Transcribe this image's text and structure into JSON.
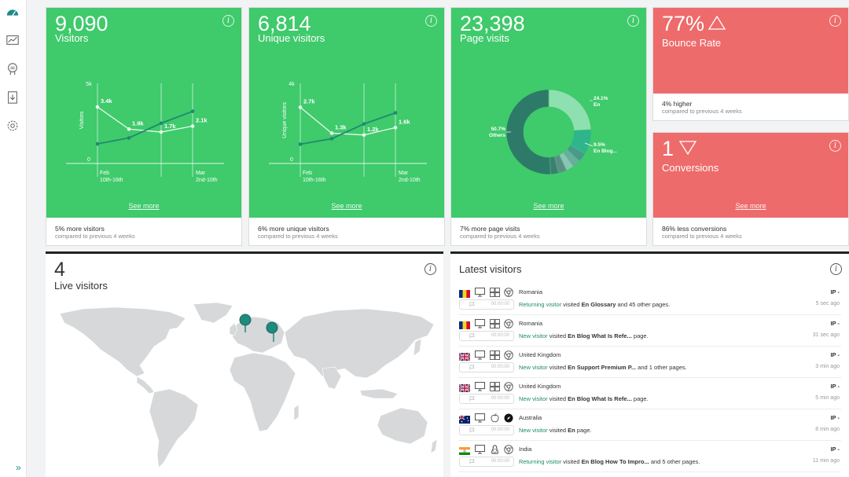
{
  "sidebar": {
    "items": [
      {
        "name": "dashboard-icon"
      },
      {
        "name": "analytics-icon"
      },
      {
        "name": "visitor-profile-icon"
      },
      {
        "name": "download-report-icon"
      },
      {
        "name": "settings-icon"
      }
    ],
    "expand_icon": "»"
  },
  "cards": [
    {
      "value": "9,090",
      "label": "Visitors",
      "see_more": "See more",
      "footer_main": "5% more visitors",
      "footer_sub": "compared to previous 4 weeks",
      "chart_data": {
        "type": "line",
        "ylabel": "Visitors",
        "yticks": [
          "5k",
          "0"
        ],
        "ylim": [
          0,
          5000
        ],
        "xticks": [
          {
            "line1": "Feb",
            "line2": "10th-16th"
          },
          {
            "line1": "Mar",
            "line2": "2nd-10th"
          }
        ],
        "series": [
          {
            "values": [
              3400,
              1900,
              1700,
              2100
            ],
            "labels": [
              "3.4k",
              "1.9k",
              "1.7k",
              "2.1k"
            ]
          },
          {
            "values": [
              900,
              1300,
              2300,
              3100
            ]
          }
        ]
      }
    },
    {
      "value": "6,814",
      "label": "Unique visitors",
      "see_more": "See more",
      "footer_main": "6% more unique visitors",
      "footer_sub": "compared to previous 4 weeks",
      "chart_data": {
        "type": "line",
        "ylabel": "Unique visitors",
        "yticks": [
          "4k",
          "0"
        ],
        "ylim": [
          0,
          4000
        ],
        "xticks": [
          {
            "line1": "Feb",
            "line2": "10th-16th"
          },
          {
            "line1": "Mar",
            "line2": "2nd-10th"
          }
        ],
        "series": [
          {
            "values": [
              2700,
              1300,
              1200,
              1600
            ],
            "labels": [
              "2.7k",
              "1.3k",
              "1.2k",
              "1.6k"
            ]
          },
          {
            "values": [
              700,
              1000,
              1800,
              2400
            ]
          }
        ]
      }
    },
    {
      "value": "23,398",
      "label": "Page visits",
      "see_more": "See more",
      "footer_main": "7% more page visits",
      "footer_sub": "compared to previous 4 weeks",
      "chart_data": {
        "type": "pie",
        "slices": [
          {
            "label_pct": "24.1%",
            "label_name": "En",
            "value": 24.1,
            "color": "#8ee0b0"
          },
          {
            "label_pct": "9.5%",
            "label_name": "En Blog...",
            "value": 9.5,
            "color": "#2eb58c"
          },
          {
            "label_pct": "",
            "label_name": "",
            "value": 3.5,
            "color": "#4a9a8a"
          },
          {
            "label_pct": "",
            "label_name": "",
            "value": 3.0,
            "color": "#6aaea0"
          },
          {
            "label_pct": "",
            "label_name": "",
            "value": 3.0,
            "color": "#8cc4b8"
          },
          {
            "label_pct": "",
            "label_name": "",
            "value": 3.2,
            "color": "#5b8f86"
          },
          {
            "label_pct": "",
            "label_name": "",
            "value": 3.0,
            "color": "#3e7e72"
          },
          {
            "label_pct": "50.7%",
            "label_name": "Others",
            "value": 50.7,
            "color": "#2e7a68"
          }
        ]
      }
    }
  ],
  "bounce": {
    "value": "77%",
    "label": "Bounce Rate",
    "footer_main": "4% higher",
    "footer_sub": "compared to previous 4 weeks"
  },
  "conversions": {
    "value": "1",
    "label": "Conversions",
    "see_more": "See more",
    "footer_main": "86% less conversions",
    "footer_sub": "compared to previous 4 weeks"
  },
  "live": {
    "count": "4",
    "label": "Live visitors"
  },
  "latest": {
    "title": "Latest visitors",
    "rows": [
      {
        "country": "Romania",
        "flag": "ro",
        "os": "windows",
        "browser": "chrome",
        "ip": "IP -",
        "box_time": "00:00:00",
        "visitor_type": "Returning visitor",
        "visited": " visited ",
        "page": "En Glossary",
        "extra": " and 45 other pages.",
        "ago": "5 sec ago"
      },
      {
        "country": "Romania",
        "flag": "ro",
        "os": "windows",
        "browser": "chrome",
        "ip": "IP -",
        "box_time": "00:00:00",
        "visitor_type": "New visitor",
        "visited": " visited ",
        "page": "En Blog What Is Refe...",
        "extra": " page.",
        "ago": "31 sec ago"
      },
      {
        "country": "United Kingdom",
        "flag": "uk",
        "os": "windows",
        "browser": "chrome",
        "ip": "IP -",
        "box_time": "00:00:00",
        "visitor_type": "New visitor",
        "visited": " visited ",
        "page": "En Support Premium P...",
        "extra": " and 1 other pages.",
        "ago": "3 min ago"
      },
      {
        "country": "United Kingdom",
        "flag": "uk",
        "os": "windows",
        "browser": "chrome",
        "ip": "IP -",
        "box_time": "00:00:00",
        "visitor_type": "New visitor",
        "visited": " visited ",
        "page": "En Blog What Is Refe...",
        "extra": " page.",
        "ago": "5 min ago"
      },
      {
        "country": "Australia",
        "flag": "au",
        "os": "apple",
        "browser": "safari",
        "ip": "IP -",
        "box_time": "00:00:00",
        "visitor_type": "New visitor",
        "visited": " visited ",
        "page": "En",
        "extra": " page.",
        "ago": "8 min ago"
      },
      {
        "country": "India",
        "flag": "in",
        "os": "linux",
        "browser": "chrome",
        "ip": "IP -",
        "box_time": "00:00:00",
        "visitor_type": "Returning visitor",
        "visited": " visited ",
        "page": "En Blog How To Impro...",
        "extra": " and 5 other pages.",
        "ago": "11 min ago"
      }
    ]
  },
  "colors": {
    "green": "#3fca6b",
    "red": "#ee6b6b",
    "dark_green": "#1f8a6f",
    "map_land": "#d6d8d9",
    "pin": "#1f8a7e"
  },
  "info_glyph": "i"
}
